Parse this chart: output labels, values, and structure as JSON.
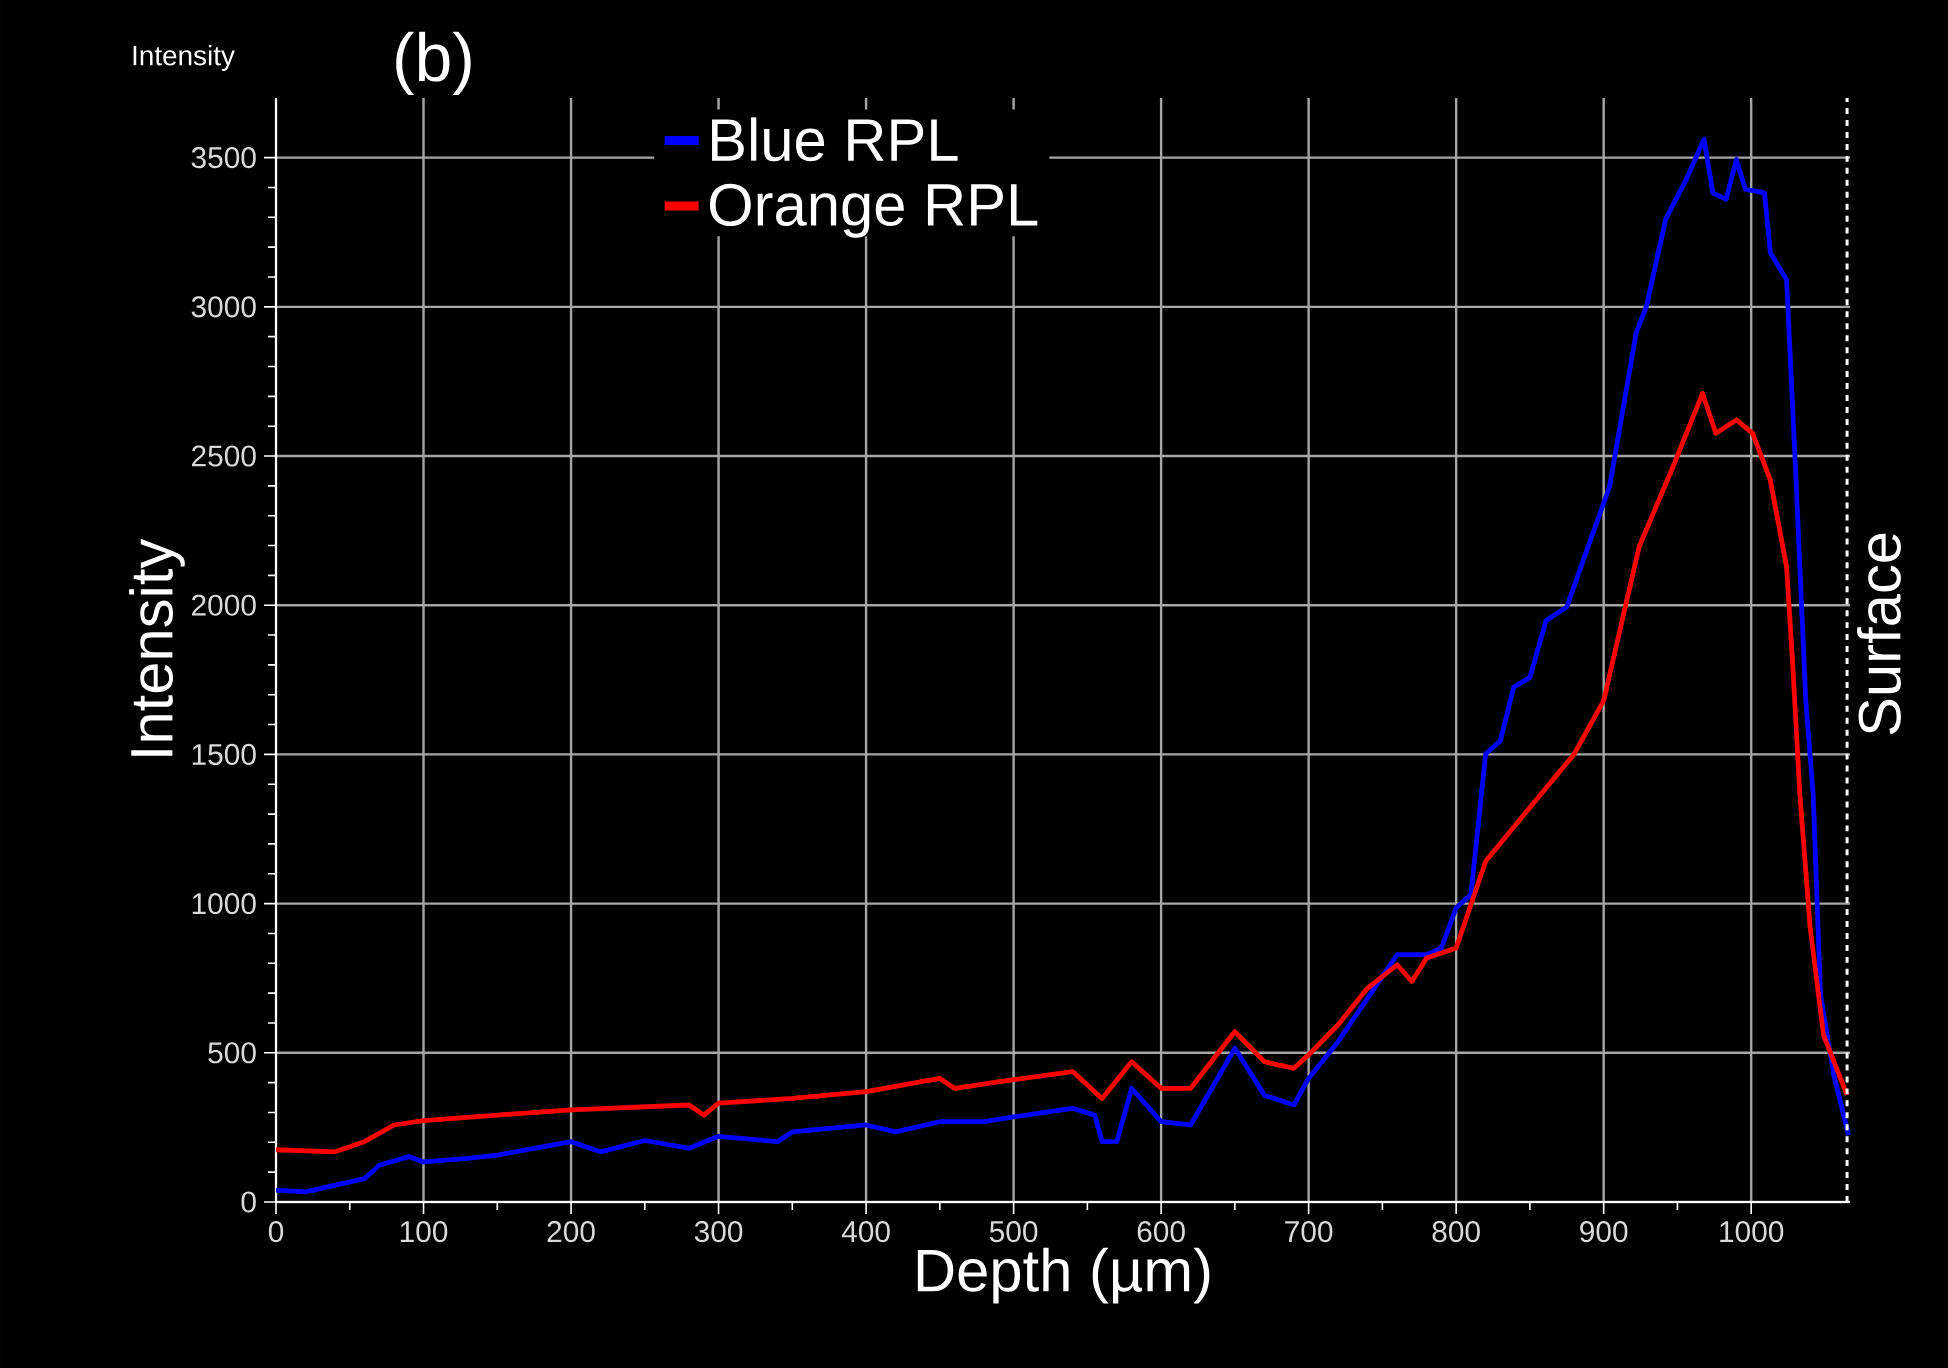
{
  "chart_data": {
    "type": "line",
    "title": "(b)",
    "xlabel": "Depth (µm)",
    "ylabel": "Intensity",
    "annotations": [
      "Intensity"
    ],
    "xlim": [
      0,
      1067
    ],
    "ylim": [
      0,
      3700
    ],
    "xticks": [
      0,
      100,
      200,
      300,
      400,
      500,
      600,
      700,
      800,
      900,
      1000
    ],
    "yticks": [
      0,
      500,
      1000,
      1500,
      2000,
      2500,
      3000,
      3500
    ],
    "grid": true,
    "legend": "top",
    "line_style": "solid",
    "ref_lines": [
      {
        "axis": "x",
        "value": 1065,
        "label": "Surface",
        "color": "#ffffff",
        "line_style": "dashed"
      }
    ],
    "series": [
      {
        "name": "Blue RPL",
        "color": "#0000ff",
        "x": [
          0,
          20,
          60,
          70,
          90,
          100,
          130,
          150,
          200,
          220,
          250,
          280,
          300,
          340,
          350,
          400,
          420,
          450,
          480,
          500,
          540,
          555,
          560,
          570,
          580,
          600,
          620,
          650,
          670,
          690,
          700,
          720,
          740,
          760,
          780,
          790,
          800,
          810,
          820,
          830,
          839,
          850,
          861,
          875,
          891,
          904,
          922,
          929,
          942,
          956,
          968,
          974,
          983,
          990,
          996,
          1009,
          1013,
          1024,
          1030,
          1037,
          1042,
          1047,
          1056,
          1066
        ],
        "values": [
          40,
          34,
          78,
          123,
          152,
          134,
          146,
          157,
          202,
          168,
          206,
          180,
          220,
          202,
          235,
          258,
          235,
          269,
          269,
          285,
          314,
          291,
          202,
          202,
          381,
          269,
          258,
          515,
          358,
          325,
          414,
          538,
          683,
          829,
          829,
          851,
          986,
          1030,
          1501,
          1546,
          1725,
          1758,
          1949,
          1994,
          2218,
          2397,
          2912,
          3002,
          3293,
          3427,
          3562,
          3382,
          3360,
          3494,
          3394,
          3382,
          3181,
          3091,
          2464,
          1680,
          1366,
          694,
          426,
          224
        ]
      },
      {
        "name": "Orange RPL",
        "color": "#ff0000",
        "x": [
          0,
          40,
          60,
          80,
          100,
          150,
          200,
          280,
          290,
          300,
          350,
          400,
          450,
          460,
          500,
          540,
          560,
          580,
          600,
          620,
          650,
          670,
          690,
          700,
          720,
          740,
          760,
          770,
          780,
          800,
          820,
          850,
          880,
          900,
          924,
          947,
          967,
          976,
          990,
          1001,
          1013,
          1024,
          1028,
          1033,
          1040,
          1049,
          1065
        ],
        "values": [
          175,
          168,
          202,
          258,
          273,
          291,
          309,
          325,
          291,
          331,
          347,
          370,
          414,
          381,
          410,
          437,
          347,
          470,
          381,
          381,
          571,
          470,
          448,
          493,
          594,
          717,
          795,
          739,
          818,
          851,
          1142,
          1322,
          1501,
          1680,
          2195,
          2464,
          2710,
          2576,
          2621,
          2576,
          2419,
          2128,
          1814,
          1366,
          918,
          560,
          358
        ]
      }
    ]
  }
}
